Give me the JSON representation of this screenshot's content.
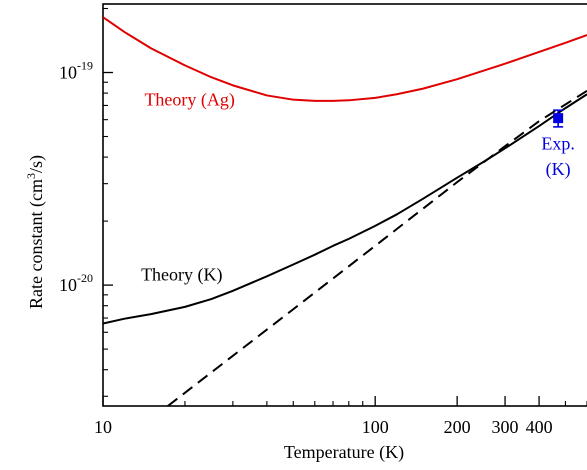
{
  "chart_data": {
    "type": "line",
    "title": "",
    "xlabel": "Temperature (K)",
    "ylabel_main": "Rate constant (cm",
    "ylabel_sup": "3",
    "ylabel_tail": "/s)",
    "xscale": "log",
    "yscale": "log",
    "xlim": [
      10,
      600
    ],
    "ylim": [
      2.7e-21,
      2.1e-19
    ],
    "x_ticks": [
      {
        "value": 10,
        "label": "10"
      },
      {
        "value": 100,
        "label": "100"
      },
      {
        "value": 200,
        "label": "200"
      },
      {
        "value": 300,
        "label": "300"
      },
      {
        "value": 400,
        "label": "400"
      }
    ],
    "x_minor_ticks": [
      20,
      30,
      40,
      50,
      60,
      70,
      80,
      90,
      500,
      600
    ],
    "y_ticks": [
      {
        "value": 1e-20,
        "base": "10",
        "exp": "-20"
      },
      {
        "value": 1e-19,
        "base": "10",
        "exp": "-19"
      }
    ],
    "y_minor_ticks": [
      3e-21,
      4e-21,
      5e-21,
      6e-21,
      7e-21,
      8e-21,
      9e-21,
      2e-20,
      3e-20,
      4e-20,
      5e-20,
      6e-20,
      7e-20,
      8e-20,
      9e-20,
      2e-19
    ],
    "series": [
      {
        "name": "Theory (Ag)",
        "color": "#e00000",
        "dash": "solid",
        "points": [
          [
            10,
            1.82e-19
          ],
          [
            12,
            1.55e-19
          ],
          [
            15,
            1.3e-19
          ],
          [
            20,
            1.08e-19
          ],
          [
            25,
            9.5e-20
          ],
          [
            30,
            8.7e-20
          ],
          [
            40,
            7.8e-20
          ],
          [
            50,
            7.45e-20
          ],
          [
            60,
            7.35e-20
          ],
          [
            70,
            7.35e-20
          ],
          [
            80,
            7.4e-20
          ],
          [
            100,
            7.6e-20
          ],
          [
            120,
            7.9e-20
          ],
          [
            150,
            8.4e-20
          ],
          [
            200,
            9.3e-20
          ],
          [
            250,
            1.02e-19
          ],
          [
            300,
            1.1e-19
          ],
          [
            400,
            1.25e-19
          ],
          [
            500,
            1.38e-19
          ],
          [
            600,
            1.5e-19
          ]
        ]
      },
      {
        "name": "Theory (K)",
        "color": "#000000",
        "dash": "solid",
        "points": [
          [
            10,
            6.6e-21
          ],
          [
            12,
            6.95e-21
          ],
          [
            15,
            7.3e-21
          ],
          [
            20,
            7.9e-21
          ],
          [
            25,
            8.6e-21
          ],
          [
            30,
            9.4e-21
          ],
          [
            40,
            1.1e-20
          ],
          [
            50,
            1.25e-20
          ],
          [
            60,
            1.39e-20
          ],
          [
            70,
            1.53e-20
          ],
          [
            80,
            1.65e-20
          ],
          [
            100,
            1.9e-20
          ],
          [
            120,
            2.15e-20
          ],
          [
            150,
            2.55e-20
          ],
          [
            200,
            3.2e-20
          ],
          [
            250,
            3.8e-20
          ],
          [
            300,
            4.4e-20
          ],
          [
            400,
            5.6e-20
          ],
          [
            500,
            6.8e-20
          ],
          [
            600,
            7.9e-20
          ]
        ]
      },
      {
        "name": "",
        "color": "#000000",
        "dash": "dashed",
        "points": [
          [
            17.3,
            2.7e-21
          ],
          [
            30,
            4.65e-21
          ],
          [
            50,
            7.7e-21
          ],
          [
            100,
            1.53e-20
          ],
          [
            200,
            3.05e-20
          ],
          [
            300,
            4.5e-20
          ],
          [
            400,
            5.9e-20
          ],
          [
            600,
            8.2e-20
          ]
        ]
      }
    ],
    "experiment": {
      "color": "#0000e0",
      "x": 470,
      "y": 6.1e-20,
      "y_low": 5.55e-20,
      "y_high": 6.65e-20
    },
    "annotations": [
      {
        "text": "Theory (Ag)",
        "color": "#e00000",
        "x": 14.2,
        "y": 7e-20,
        "anchor": "start"
      },
      {
        "text": "Theory (K)",
        "color": "#000000",
        "x": 13.8,
        "y": 1.05e-20,
        "anchor": "start"
      },
      {
        "text": "Exp.",
        "color": "#0000e0",
        "x": 470,
        "y": 4.35e-20,
        "anchor": "middle"
      },
      {
        "text": "(K)",
        "color": "#0000e0",
        "x": 470,
        "y": 3.3e-20,
        "anchor": "middle"
      }
    ]
  }
}
